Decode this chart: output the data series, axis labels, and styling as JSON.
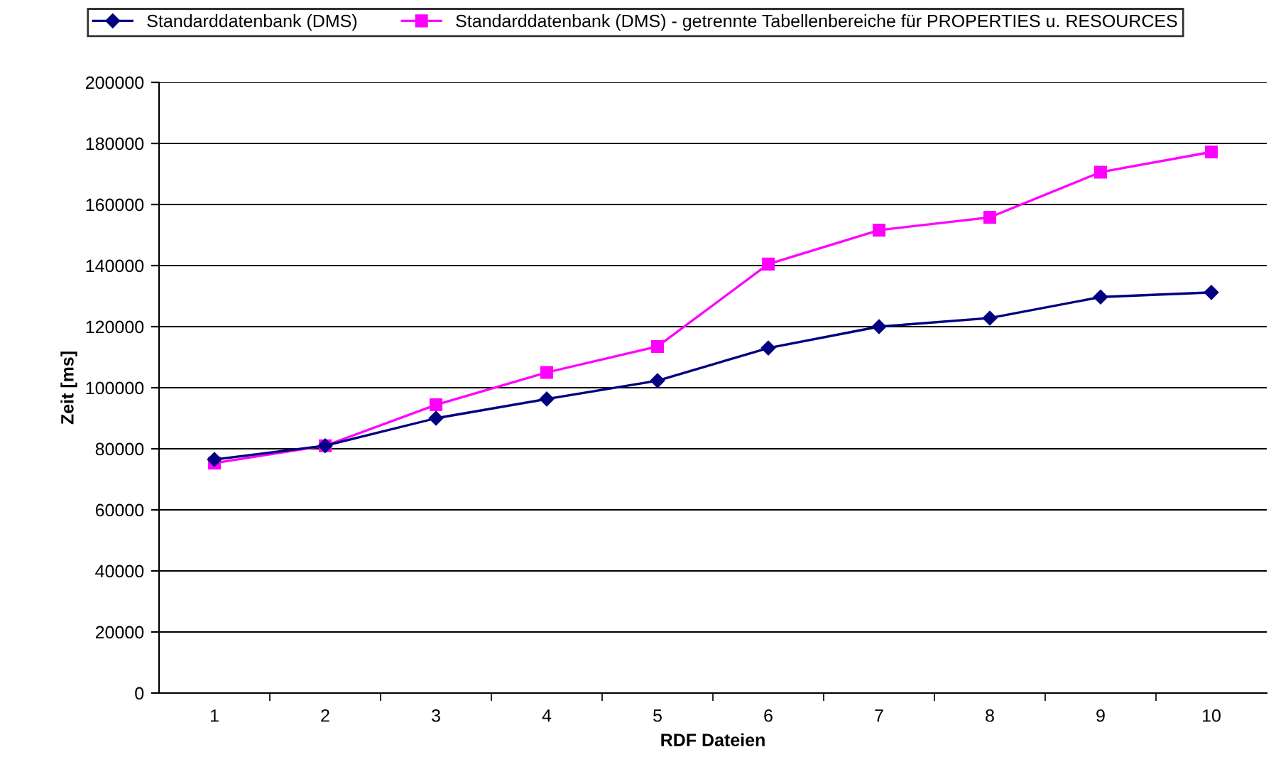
{
  "chart_data": {
    "type": "line",
    "xlabel": "RDF Dateien",
    "ylabel": "Zeit [ms]",
    "categories": [
      "1",
      "2",
      "3",
      "4",
      "5",
      "6",
      "7",
      "8",
      "9",
      "10"
    ],
    "series": [
      {
        "name": "Standarddatenbank (DMS)",
        "color": "#000080",
        "marker": "diamond",
        "values": [
          76500,
          81000,
          90000,
          96300,
          102300,
          113000,
          120000,
          122800,
          129700,
          131200
        ]
      },
      {
        "name": "Standarddatenbank (DMS) - getrennte Tabellenbereiche für PROPERTIES u. RESOURCES",
        "color": "#ff00ff",
        "marker": "square",
        "values": [
          75300,
          81000,
          94400,
          105000,
          113500,
          140500,
          151600,
          155800,
          170600,
          177200
        ]
      }
    ],
    "ylim": [
      0,
      200000
    ],
    "yticks": [
      0,
      20000,
      40000,
      60000,
      80000,
      100000,
      120000,
      140000,
      160000,
      180000,
      200000
    ],
    "grid": "y",
    "legend": "top",
    "line_style": "solid"
  }
}
